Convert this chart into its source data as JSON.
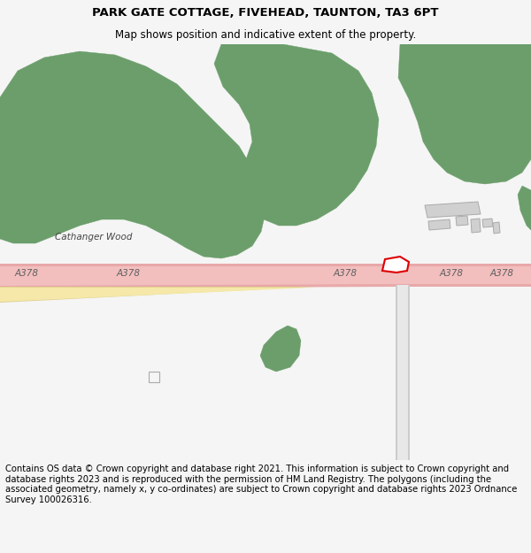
{
  "title": "PARK GATE COTTAGE, FIVEHEAD, TAUNTON, TA3 6PT",
  "subtitle": "Map shows position and indicative extent of the property.",
  "footer": "Contains OS data © Crown copyright and database right 2021. This information is subject to Crown copyright and database rights 2023 and is reproduced with the permission of HM Land Registry. The polygons (including the associated geometry, namely x, y co-ordinates) are subject to Crown copyright and database rights 2023 Ordnance Survey 100026316.",
  "bg_color": "#f5f5f5",
  "map_bg": "#ffffff",
  "green_color": "#6b9e6b",
  "road_color": "#f2bebe",
  "road_border": "#e8a8a8",
  "road_yellow": "#f5e8a8",
  "road_yellow_border": "#e0d090",
  "building_color": "#d0d0d0",
  "building_border": "#aaaaaa",
  "plot_color": "#dd0000",
  "minor_road_color": "#e8e8e8",
  "minor_road_border": "#cccccc",
  "title_fontsize": 9.5,
  "subtitle_fontsize": 8.5,
  "footer_fontsize": 7.2,
  "label_fontsize": 7.5,
  "wood_label_fontsize": 7.5
}
